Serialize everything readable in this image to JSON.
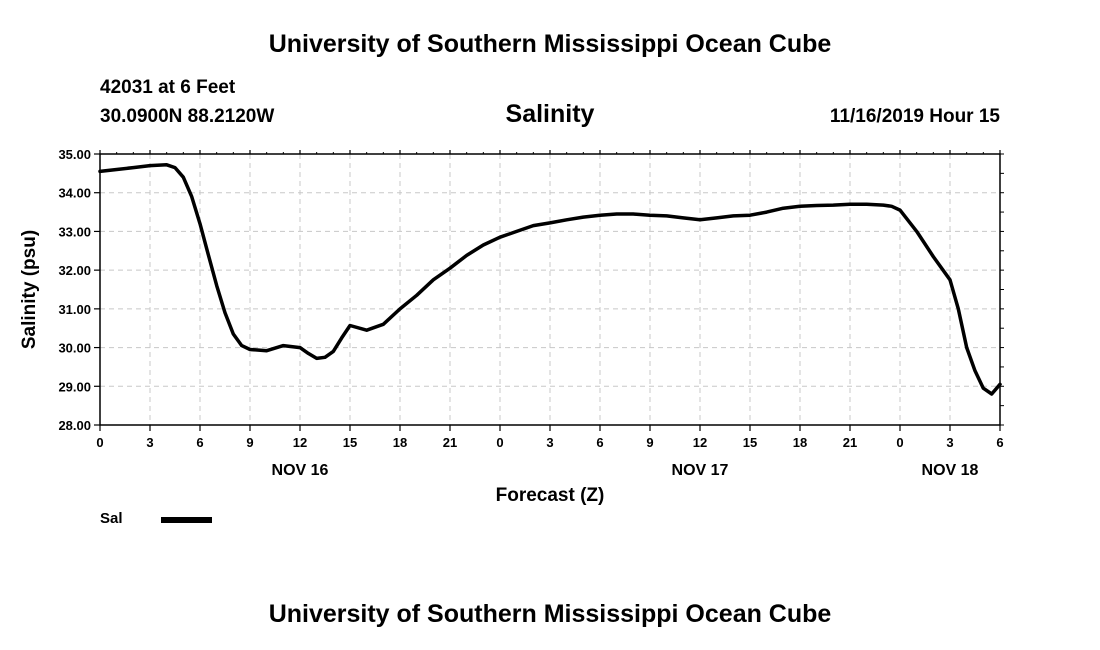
{
  "header": {
    "title": "University of Southern Mississippi Ocean Cube",
    "station": "42031 at 6 Feet",
    "coords": "30.0900N 88.2120W",
    "variable": "Salinity",
    "timestamp": "11/16/2019 Hour 15"
  },
  "footer": {
    "title": "University of Southern Mississippi Ocean Cube"
  },
  "legend": {
    "label": "Sal",
    "color": "#000000"
  },
  "chart_data": {
    "type": "line",
    "xlabel": "Forecast (Z)",
    "ylabel": "Salinity (psu)",
    "ylim": [
      28.0,
      35.0
    ],
    "xlim_hours": [
      0,
      54
    ],
    "grid": true,
    "y_ticks": [
      "28.00",
      "29.00",
      "30.00",
      "31.00",
      "32.00",
      "33.00",
      "34.00",
      "35.00"
    ],
    "x_ticks": [
      {
        "hour": 0,
        "label": "0"
      },
      {
        "hour": 3,
        "label": "3"
      },
      {
        "hour": 6,
        "label": "6"
      },
      {
        "hour": 9,
        "label": "9"
      },
      {
        "hour": 12,
        "label": "12"
      },
      {
        "hour": 15,
        "label": "15"
      },
      {
        "hour": 18,
        "label": "18"
      },
      {
        "hour": 21,
        "label": "21"
      },
      {
        "hour": 24,
        "label": "0"
      },
      {
        "hour": 27,
        "label": "3"
      },
      {
        "hour": 30,
        "label": "6"
      },
      {
        "hour": 33,
        "label": "9"
      },
      {
        "hour": 36,
        "label": "12"
      },
      {
        "hour": 39,
        "label": "15"
      },
      {
        "hour": 42,
        "label": "18"
      },
      {
        "hour": 45,
        "label": "21"
      },
      {
        "hour": 48,
        "label": "0"
      },
      {
        "hour": 51,
        "label": "3"
      },
      {
        "hour": 54,
        "label": "6"
      }
    ],
    "date_labels": [
      {
        "hour": 12,
        "label": "NOV 16"
      },
      {
        "hour": 36,
        "label": "NOV 17"
      },
      {
        "hour": 51,
        "label": "NOV 18"
      }
    ],
    "series": [
      {
        "name": "Sal",
        "color": "#000000",
        "points": [
          [
            0,
            34.55
          ],
          [
            1,
            34.6
          ],
          [
            2,
            34.65
          ],
          [
            3,
            34.7
          ],
          [
            4,
            34.72
          ],
          [
            4.5,
            34.65
          ],
          [
            5,
            34.4
          ],
          [
            5.5,
            33.9
          ],
          [
            6,
            33.2
          ],
          [
            6.5,
            32.4
          ],
          [
            7,
            31.6
          ],
          [
            7.5,
            30.9
          ],
          [
            8,
            30.35
          ],
          [
            8.5,
            30.05
          ],
          [
            9,
            29.95
          ],
          [
            10,
            29.92
          ],
          [
            11,
            30.05
          ],
          [
            12,
            30.0
          ],
          [
            12.5,
            29.85
          ],
          [
            13,
            29.72
          ],
          [
            13.5,
            29.75
          ],
          [
            14,
            29.9
          ],
          [
            14.5,
            30.25
          ],
          [
            15,
            30.57
          ],
          [
            16,
            30.45
          ],
          [
            17,
            30.6
          ],
          [
            18,
            31.0
          ],
          [
            19,
            31.35
          ],
          [
            20,
            31.75
          ],
          [
            21,
            32.05
          ],
          [
            22,
            32.38
          ],
          [
            23,
            32.65
          ],
          [
            24,
            32.85
          ],
          [
            25,
            33.0
          ],
          [
            26,
            33.15
          ],
          [
            27,
            33.22
          ],
          [
            28,
            33.3
          ],
          [
            29,
            33.37
          ],
          [
            30,
            33.42
          ],
          [
            31,
            33.45
          ],
          [
            32,
            33.45
          ],
          [
            33,
            33.42
          ],
          [
            34,
            33.4
          ],
          [
            35,
            33.35
          ],
          [
            36,
            33.3
          ],
          [
            37,
            33.35
          ],
          [
            38,
            33.4
          ],
          [
            39,
            33.42
          ],
          [
            40,
            33.5
          ],
          [
            41,
            33.6
          ],
          [
            42,
            33.65
          ],
          [
            43,
            33.67
          ],
          [
            44,
            33.68
          ],
          [
            45,
            33.7
          ],
          [
            46,
            33.7
          ],
          [
            47,
            33.68
          ],
          [
            47.5,
            33.65
          ],
          [
            48,
            33.55
          ],
          [
            49,
            33.0
          ],
          [
            50,
            32.35
          ],
          [
            51,
            31.75
          ],
          [
            51.5,
            31.0
          ],
          [
            52,
            30.0
          ],
          [
            52.5,
            29.4
          ],
          [
            53,
            28.95
          ],
          [
            53.5,
            28.8
          ],
          [
            54,
            29.05
          ]
        ]
      }
    ]
  }
}
